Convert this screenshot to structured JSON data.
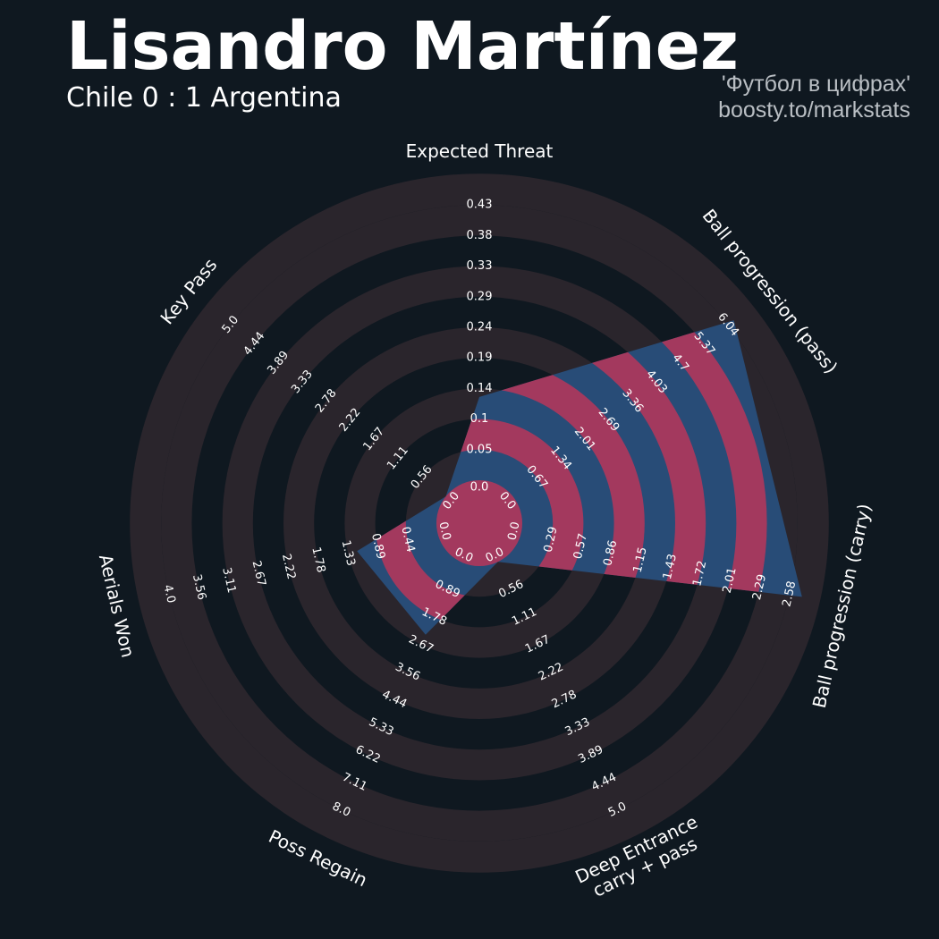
{
  "header": {
    "title": "Lisandro Martínez",
    "subtitle": "Chile 0 : 1 Argentina",
    "credit_line1": "'Футбол в цифрах'",
    "credit_line2": "boosty.to/markstats"
  },
  "colors": {
    "background": "#0f1820",
    "ring": "#2a252c",
    "fill_primary": "#284c77",
    "fill_alt": "#a3395e",
    "text": "#ffffff",
    "credit": "#b9bec3"
  },
  "chart_data": {
    "type": "radar",
    "title": "Lisandro Martínez",
    "parameters": [
      {
        "name": "Expected Threat",
        "min": 0.0,
        "max": 0.43,
        "value": 0.13,
        "ticks": [
          "0.0",
          "0.05",
          "0.1",
          "0.14",
          "0.19",
          "0.24",
          "0.29",
          "0.33",
          "0.38",
          "0.43"
        ]
      },
      {
        "name": "Ball progression (pass)",
        "min": 0.0,
        "max": 6.04,
        "value": 6.2,
        "ticks": [
          "0.0",
          "0.67",
          "1.34",
          "2.01",
          "2.69",
          "3.36",
          "4.03",
          "4.7",
          "5.37",
          "6.04"
        ]
      },
      {
        "name": "Ball progression (carry)",
        "min": 0.0,
        "max": 2.58,
        "value": 2.7,
        "ticks": [
          "0.0",
          "0.29",
          "0.57",
          "0.86",
          "1.15",
          "1.43",
          "1.72",
          "2.01",
          "2.29",
          "2.58"
        ]
      },
      {
        "name": "Deep Entrance\ncarry + pass",
        "min": 0.0,
        "max": 5.0,
        "value": 0.0,
        "ticks": [
          "0.0",
          "0.56",
          "1.11",
          "1.67",
          "2.22",
          "2.78",
          "3.33",
          "3.89",
          "4.44",
          "5.0"
        ]
      },
      {
        "name": "Poss Regain",
        "min": 0.0,
        "max": 8.0,
        "value": 2.35,
        "ticks": [
          "0.0",
          "0.89",
          "1.78",
          "2.67",
          "3.56",
          "4.44",
          "5.33",
          "6.22",
          "7.11",
          "8.0"
        ]
      },
      {
        "name": "Aerials Won",
        "min": 0.0,
        "max": 4.0,
        "value": 1.2,
        "ticks": [
          "0.0",
          "0.44",
          "0.89",
          "1.33",
          "1.78",
          "2.22",
          "2.67",
          "3.11",
          "3.56",
          "4.0"
        ]
      },
      {
        "name": "Key Pass",
        "min": 0.0,
        "max": 5.0,
        "value": 0.0,
        "ticks": [
          "0.0",
          "0.56",
          "1.11",
          "1.67",
          "2.22",
          "2.78",
          "3.33",
          "3.89",
          "4.44",
          "5.0"
        ]
      }
    ]
  }
}
